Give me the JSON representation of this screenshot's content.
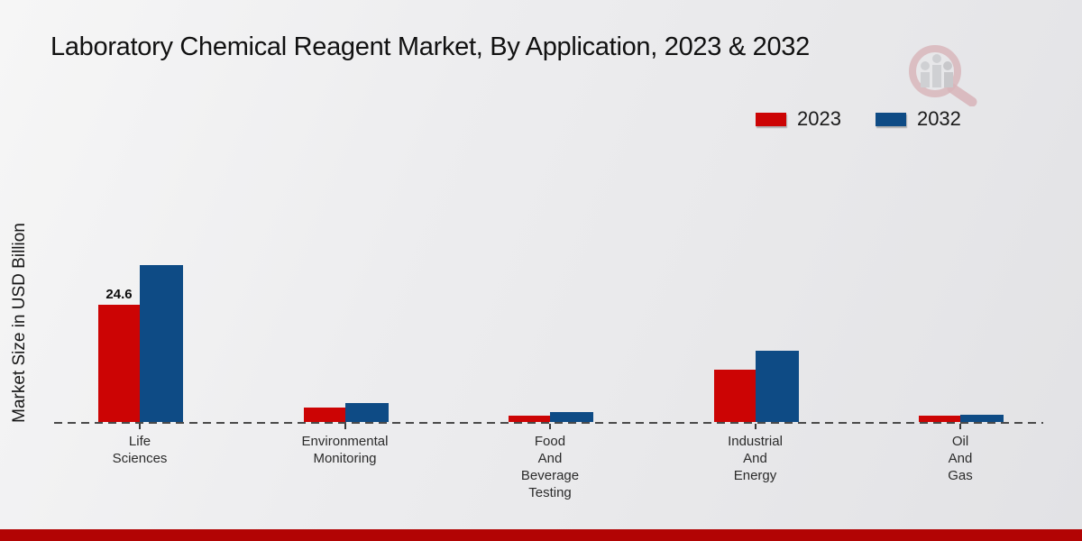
{
  "title": "Laboratory Chemical Reagent Market, By Application, 2023 & 2032",
  "legend": {
    "items": [
      {
        "label": "2023",
        "color": "#cc0404"
      },
      {
        "label": "2032",
        "color": "#0e4b85"
      }
    ]
  },
  "icons": {
    "watermark": "magnifier-bar-chart-logo"
  },
  "chart_data": {
    "type": "bar",
    "title": "Laboratory Chemical Reagent Market, By Application, 2023 & 2032",
    "xlabel": "",
    "ylabel": "Market Size in USD Billion",
    "categories": [
      "Life Sciences",
      "Environmental Monitoring",
      "Food And Beverage Testing",
      "Industrial And Energy",
      "Oil And Gas"
    ],
    "category_label_lines": [
      [
        "Life",
        "Sciences"
      ],
      [
        "Environmental",
        "Monitoring"
      ],
      [
        "Food",
        "And",
        "Beverage",
        "Testing"
      ],
      [
        "Industrial",
        "And",
        "Energy"
      ],
      [
        "Oil",
        "And",
        "Gas"
      ]
    ],
    "series": [
      {
        "name": "2023",
        "color": "#cc0404",
        "values": [
          24.6,
          3.0,
          1.4,
          11.0,
          1.3
        ]
      },
      {
        "name": "2032",
        "color": "#0e4b85",
        "values": [
          32.9,
          4.0,
          2.0,
          14.9,
          1.5
        ]
      }
    ],
    "bar_value_labels": [
      {
        "series": "2023",
        "category": "Life Sciences",
        "text": "24.6"
      }
    ],
    "ylim": [
      0,
      35
    ],
    "grid": false,
    "baseline_style": "dashed",
    "legend_position": "top-right",
    "units": "USD Billion"
  },
  "footer": {
    "band_color": "#b20404"
  }
}
